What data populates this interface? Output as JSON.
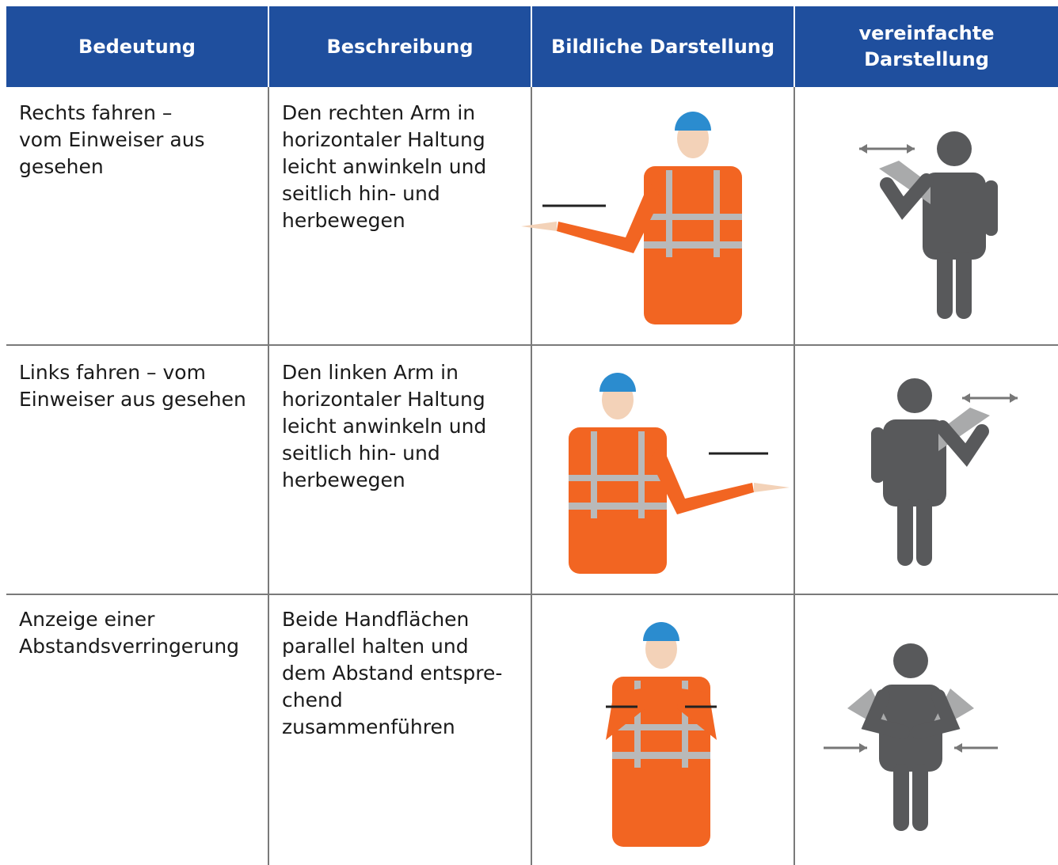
{
  "table": {
    "header": [
      [
        "Bedeutung"
      ],
      [
        "Beschreibung"
      ],
      [
        "Bildliche Darstellung"
      ],
      [
        "vereinfachte",
        "Darstellung"
      ]
    ],
    "rows": [
      [
        [
          "Rechts fahren –",
          "vom Einweiser aus",
          "gesehen"
        ],
        [
          "Den rechten Arm in",
          "horizontaler Haltung",
          "leicht anwinkeln und",
          "seitlich hin- und",
          "herbewegen"
        ]
      ],
      [
        [
          "Links fahren – vom",
          "Einweiser aus gesehen"
        ],
        [
          "Den linken Arm in",
          "horizontaler Haltung",
          "leicht anwinkeln und",
          "seitlich hin- und",
          "herbewegen"
        ]
      ],
      [
        [
          "Anzeige einer",
          "Abstandsverringerung"
        ],
        [
          "Beide Handflächen",
          "parallel halten und",
          "dem Abstand entspre-",
          "chend",
          "zusammenführen"
        ]
      ]
    ]
  }
}
